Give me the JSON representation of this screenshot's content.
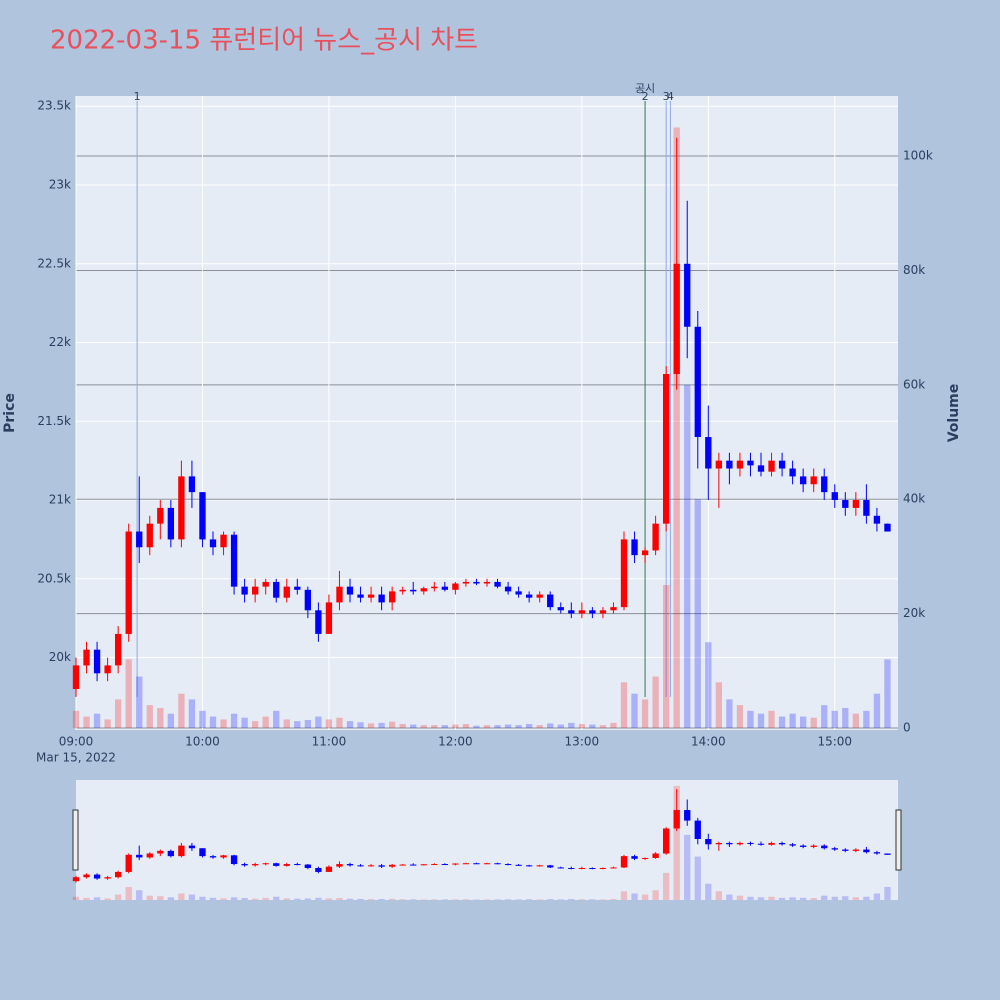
{
  "chart_data": {
    "type": "candlestick",
    "title": "2022-03-15 퓨런티어 뉴스_공시 차트",
    "y_title": "Price",
    "y2_title": "Volume",
    "x_date_label": "Mar 15, 2022",
    "increasing_color": "#ff0000",
    "decreasing_color": "#0000ff",
    "xlim": [
      "2022-03-15 09:00",
      "2022-03-15 15:30"
    ],
    "xticks": [
      {
        "value": "2022-03-15 09:00",
        "label": "09:00"
      },
      {
        "value": "2022-03-15 10:00",
        "label": "10:00"
      },
      {
        "value": "2022-03-15 11:00",
        "label": "11:00"
      },
      {
        "value": "2022-03-15 12:00",
        "label": "12:00"
      },
      {
        "value": "2022-03-15 13:00",
        "label": "13:00"
      },
      {
        "value": "2022-03-15 14:00",
        "label": "14:00"
      },
      {
        "value": "2022-03-15 15:00",
        "label": "15:00"
      }
    ],
    "ylim": [
      19540,
      23565
    ],
    "yticks": [
      {
        "value": 20000,
        "label": "20k"
      },
      {
        "value": 20500,
        "label": "20.5k"
      },
      {
        "value": 21000,
        "label": "21k"
      },
      {
        "value": 21500,
        "label": "21.5k"
      },
      {
        "value": 22000,
        "label": "22k"
      },
      {
        "value": 22500,
        "label": "22.5k"
      },
      {
        "value": 23000,
        "label": "23k"
      },
      {
        "value": 23500,
        "label": "23.5k"
      }
    ],
    "y2lim": [
      0,
      110500
    ],
    "y2ticks": [
      0,
      {
        "value": 20000,
        "label": "20k"
      },
      {
        "value": 40000,
        "label": "40k"
      },
      {
        "value": 60000,
        "label": "60k"
      },
      {
        "value": 80000,
        "label": "80k"
      },
      {
        "value": 100000,
        "label": "100k"
      }
    ],
    "annotations": [
      {
        "x": "2022-03-15 09:29",
        "label": "1",
        "color": "#8fa8e8"
      },
      {
        "x": "2022-03-15 13:30",
        "label": "2",
        "text": "공시",
        "color": "#2e7d4f"
      },
      {
        "x": "2022-03-15 13:40",
        "label": "3",
        "color": "#8fa8e8"
      },
      {
        "x": "2022-03-15 13:42",
        "label": "4",
        "color": "#8fa8e8"
      }
    ],
    "x": [
      "2022-03-15 09:00",
      "2022-03-15 09:05",
      "2022-03-15 09:10",
      "2022-03-15 09:15",
      "2022-03-15 09:20",
      "2022-03-15 09:25",
      "2022-03-15 09:30",
      "2022-03-15 09:35",
      "2022-03-15 09:40",
      "2022-03-15 09:45",
      "2022-03-15 09:50",
      "2022-03-15 09:55",
      "2022-03-15 10:00",
      "2022-03-15 10:05",
      "2022-03-15 10:10",
      "2022-03-15 10:15",
      "2022-03-15 10:20",
      "2022-03-15 10:25",
      "2022-03-15 10:30",
      "2022-03-15 10:35",
      "2022-03-15 10:40",
      "2022-03-15 10:45",
      "2022-03-15 10:50",
      "2022-03-15 10:55",
      "2022-03-15 11:00",
      "2022-03-15 11:05",
      "2022-03-15 11:10",
      "2022-03-15 11:15",
      "2022-03-15 11:20",
      "2022-03-15 11:25",
      "2022-03-15 11:30",
      "2022-03-15 11:35",
      "2022-03-15 11:40",
      "2022-03-15 11:45",
      "2022-03-15 11:50",
      "2022-03-15 11:55",
      "2022-03-15 12:00",
      "2022-03-15 12:05",
      "2022-03-15 12:10",
      "2022-03-15 12:15",
      "2022-03-15 12:20",
      "2022-03-15 12:25",
      "2022-03-15 12:30",
      "2022-03-15 12:35",
      "2022-03-15 12:40",
      "2022-03-15 12:45",
      "2022-03-15 12:50",
      "2022-03-15 12:55",
      "2022-03-15 13:00",
      "2022-03-15 13:05",
      "2022-03-15 13:10",
      "2022-03-15 13:15",
      "2022-03-15 13:20",
      "2022-03-15 13:25",
      "2022-03-15 13:30",
      "2022-03-15 13:35",
      "2022-03-15 13:40",
      "2022-03-15 13:45",
      "2022-03-15 13:50",
      "2022-03-15 13:55",
      "2022-03-15 14:00",
      "2022-03-15 14:05",
      "2022-03-15 14:10",
      "2022-03-15 14:15",
      "2022-03-15 14:20",
      "2022-03-15 14:25",
      "2022-03-15 14:30",
      "2022-03-15 14:35",
      "2022-03-15 14:40",
      "2022-03-15 14:45",
      "2022-03-15 14:50",
      "2022-03-15 14:55",
      "2022-03-15 15:00",
      "2022-03-15 15:05",
      "2022-03-15 15:10",
      "2022-03-15 15:15",
      "2022-03-15 15:20",
      "2022-03-15 15:25"
    ],
    "open": [
      19800,
      19950,
      20050,
      19900,
      19950,
      20150,
      20800,
      20700,
      20850,
      20950,
      20750,
      21150,
      21050,
      20750,
      20700,
      20780,
      20450,
      20400,
      20450,
      20480,
      20380,
      20450,
      20430,
      20300,
      20150,
      20350,
      20450,
      20400,
      20380,
      20400,
      20350,
      20420,
      20430,
      20420,
      20440,
      20450,
      20430,
      20470,
      20480,
      20470,
      20480,
      20450,
      20420,
      20400,
      20380,
      20400,
      20320,
      20300,
      20280,
      20300,
      20280,
      20300,
      20320,
      20750,
      20650,
      20680,
      20850,
      21800,
      22500,
      22100,
      21400,
      21200,
      21250,
      21200,
      21250,
      21220,
      21180,
      21250,
      21200,
      21150,
      21100,
      21150,
      21050,
      21000,
      20950,
      21000,
      20900,
      20850
    ],
    "high": [
      20000,
      20100,
      20100,
      20000,
      20200,
      20850,
      21150,
      20900,
      21000,
      21000,
      21250,
      21250,
      21050,
      20800,
      20800,
      20800,
      20500,
      20500,
      20500,
      20500,
      20500,
      20500,
      20450,
      20350,
      20400,
      20550,
      20500,
      20450,
      20450,
      20450,
      20450,
      20450,
      20480,
      20450,
      20480,
      20480,
      20480,
      20500,
      20500,
      20500,
      20500,
      20480,
      20450,
      20420,
      20420,
      20420,
      20350,
      20350,
      20350,
      20320,
      20320,
      20350,
      20800,
      20800,
      20700,
      20900,
      21850,
      23300,
      22900,
      22200,
      21600,
      21300,
      21300,
      21300,
      21300,
      21300,
      21300,
      21300,
      21250,
      21200,
      21200,
      21200,
      21100,
      21050,
      21050,
      21100,
      20950,
      20850
    ],
    "low": [
      19750,
      19900,
      19850,
      19850,
      19900,
      20100,
      20600,
      20650,
      20750,
      20700,
      20700,
      20950,
      20700,
      20650,
      20650,
      20400,
      20350,
      20350,
      20400,
      20350,
      20350,
      20400,
      20250,
      20100,
      20150,
      20300,
      20350,
      20350,
      20350,
      20300,
      20300,
      20400,
      20400,
      20400,
      20420,
      20420,
      20400,
      20450,
      20460,
      20450,
      20440,
      20400,
      20380,
      20350,
      20350,
      20300,
      20280,
      20250,
      20250,
      20250,
      20250,
      20280,
      20300,
      20600,
      20600,
      20650,
      20800,
      21700,
      21900,
      21200,
      21000,
      20950,
      21100,
      21150,
      21150,
      21150,
      21150,
      21150,
      21100,
      21050,
      21050,
      21000,
      20950,
      20900,
      20900,
      20850,
      20800,
      20800
    ],
    "close": [
      19950,
      20050,
      19900,
      19950,
      20150,
      20800,
      20700,
      20850,
      20950,
      20750,
      21150,
      21050,
      20750,
      20700,
      20780,
      20450,
      20400,
      20450,
      20480,
      20380,
      20450,
      20430,
      20300,
      20150,
      20350,
      20450,
      20400,
      20380,
      20400,
      20350,
      20420,
      20430,
      20420,
      20440,
      20450,
      20430,
      20470,
      20480,
      20470,
      20480,
      20450,
      20420,
      20400,
      20380,
      20400,
      20320,
      20300,
      20280,
      20300,
      20280,
      20300,
      20320,
      20750,
      20650,
      20680,
      20850,
      21800,
      22500,
      22100,
      21400,
      21200,
      21250,
      21200,
      21250,
      21220,
      21180,
      21250,
      21200,
      21150,
      21100,
      21150,
      21050,
      21000,
      20950,
      21000,
      20900,
      20850,
      20800
    ],
    "volume": [
      3000,
      2000,
      2500,
      1500,
      5000,
      12000,
      9000,
      4000,
      3500,
      2500,
      6000,
      5000,
      3000,
      2000,
      1500,
      2500,
      1800,
      1200,
      2000,
      3000,
      1500,
      1200,
      1400,
      2000,
      1500,
      1800,
      1200,
      1000,
      800,
      900,
      1100,
      700,
      600,
      500,
      500,
      500,
      600,
      700,
      400,
      500,
      500,
      600,
      500,
      700,
      500,
      800,
      600,
      900,
      700,
      600,
      500,
      900,
      8000,
      6000,
      5000,
      9000,
      25000,
      105000,
      60000,
      40000,
      15000,
      8000,
      5000,
      4000,
      3000,
      2500,
      3000,
      2000,
      2500,
      2000,
      1800,
      4000,
      3000,
      3500,
      2500,
      3000,
      6000,
      12000
    ]
  }
}
